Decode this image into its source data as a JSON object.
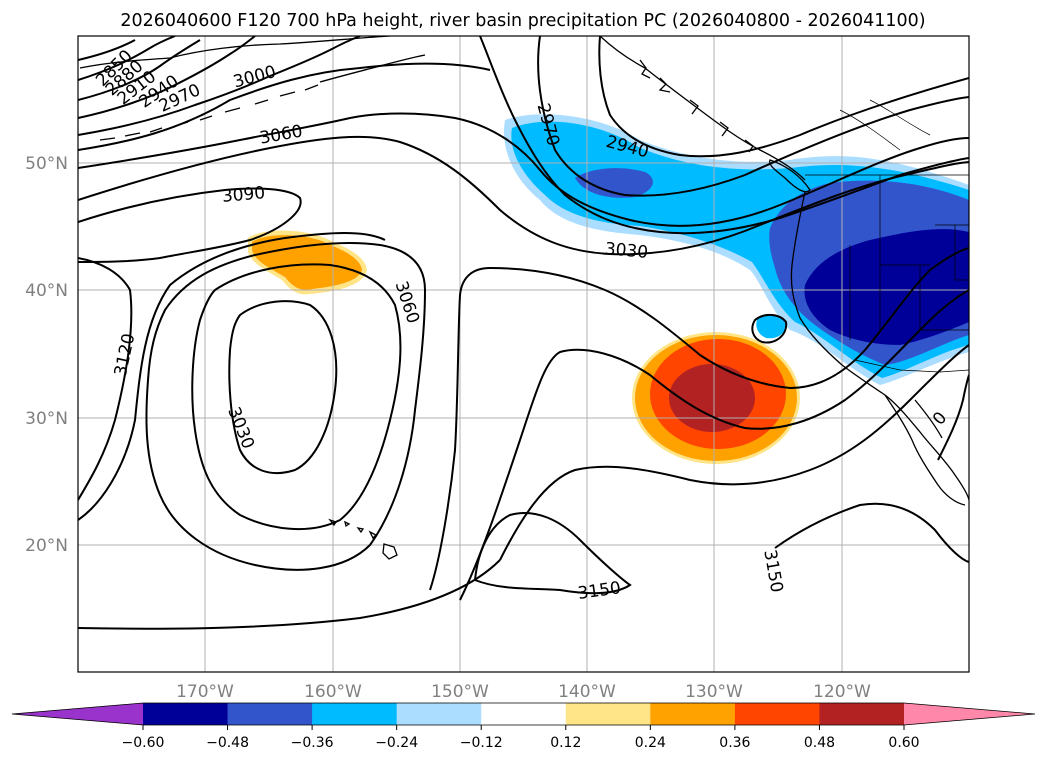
{
  "title": "2026040600 F120 700 hPa height, river basin precipitation PC (2026040800 - 2026041100)",
  "lat_labels": [
    "50°N",
    "40°N",
    "30°N",
    "20°N"
  ],
  "lon_labels": [
    "170°W",
    "160°W",
    "150°W",
    "140°W",
    "130°W",
    "120°W"
  ],
  "contour_labels": [
    "2850",
    "2880",
    "2910",
    "2940",
    "2970",
    "3000",
    "3060",
    "3090",
    "3120",
    "3030",
    "3060",
    "2970",
    "2940",
    "3030",
    "3150",
    "3150",
    "0"
  ],
  "colorbar": {
    "ticks": [
      "−0.60",
      "−0.48",
      "−0.36",
      "−0.24",
      "−0.12",
      "0.12",
      "0.24",
      "0.36",
      "0.48",
      "0.60"
    ],
    "colors": [
      "#9933cc",
      "#000099",
      "#3355cc",
      "#00bbff",
      "#aaddff",
      "#ffffff",
      "#ffe588",
      "#ffa200",
      "#ff4500",
      "#b22222",
      "#ff88aa"
    ]
  },
  "chart_data": {
    "type": "map",
    "title": "2026040600 F120 700 hPa height, river basin precipitation PC (2026040800 - 2026041100)",
    "lon_range": [
      -180,
      -110
    ],
    "lat_range": [
      10,
      60
    ],
    "gridlines": true,
    "lon_ticks": [
      -170,
      -160,
      -150,
      -140,
      -130,
      -120
    ],
    "lat_ticks": [
      20,
      30,
      40,
      50
    ],
    "contour_levels_labeled": [
      2850,
      2880,
      2910,
      2940,
      2970,
      3000,
      3030,
      3060,
      3090,
      3120,
      3150
    ],
    "colorbar_levels": [
      -0.6,
      -0.48,
      -0.36,
      -0.24,
      -0.12,
      0.12,
      0.24,
      0.36,
      0.48,
      0.6
    ],
    "colorbar_extend": "both"
  }
}
